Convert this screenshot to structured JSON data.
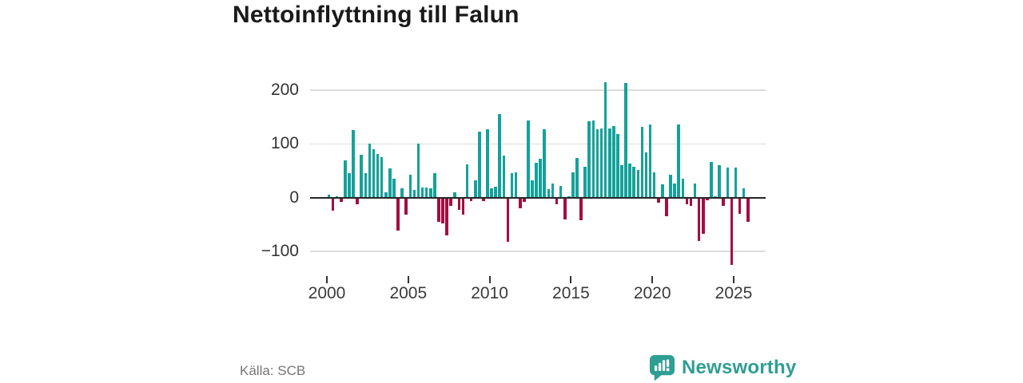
{
  "title": "Nettoinflyttning till Falun",
  "source_label": "Källa: SCB",
  "branding": {
    "name": "Newsworthy",
    "logo_icon": "speech-bubble-bar-chart-exclamation",
    "color": "#2f9e93"
  },
  "chart_data": {
    "type": "bar",
    "title": "Nettoinflyttning till Falun",
    "xlabel": "",
    "ylabel": "",
    "x_start": "2000-Q1",
    "x_frequency": "quarterly",
    "x_tick_labels": [
      "2000",
      "2005",
      "2010",
      "2015",
      "2020",
      "2025"
    ],
    "y_ticks": [
      200,
      100,
      0,
      -100
    ],
    "y_tick_labels": [
      "200",
      "100",
      "0",
      "−100"
    ],
    "ylim": [
      -150,
      230
    ],
    "grid": "horizontal",
    "legend": "none",
    "colors": {
      "positive": "#14a29a",
      "negative": "#a50d40"
    },
    "values": [
      5,
      -25,
      2,
      -8,
      70,
      45,
      126,
      -12,
      80,
      45,
      101,
      90,
      82,
      75,
      10,
      54,
      35,
      -61,
      17,
      -31,
      42,
      15,
      100,
      19,
      19,
      17,
      46,
      -45,
      -48,
      -71,
      -16,
      10,
      -23,
      -31,
      62,
      -6,
      32,
      123,
      -7,
      127,
      17,
      20,
      155,
      79,
      -82,
      45,
      47,
      -20,
      -8,
      144,
      32,
      65,
      72,
      128,
      16,
      26,
      -12,
      22,
      -41,
      2,
      47,
      74,
      -42,
      57,
      143,
      144,
      127,
      129,
      215,
      129,
      134,
      119,
      61,
      213,
      64,
      57,
      52,
      132,
      85,
      137,
      47,
      -10,
      25,
      -35,
      42,
      27,
      137,
      35,
      -12,
      -16,
      27,
      -81,
      -67,
      -5,
      66,
      2,
      61,
      -16,
      56,
      -126,
      56,
      -30,
      17,
      -45
    ]
  }
}
